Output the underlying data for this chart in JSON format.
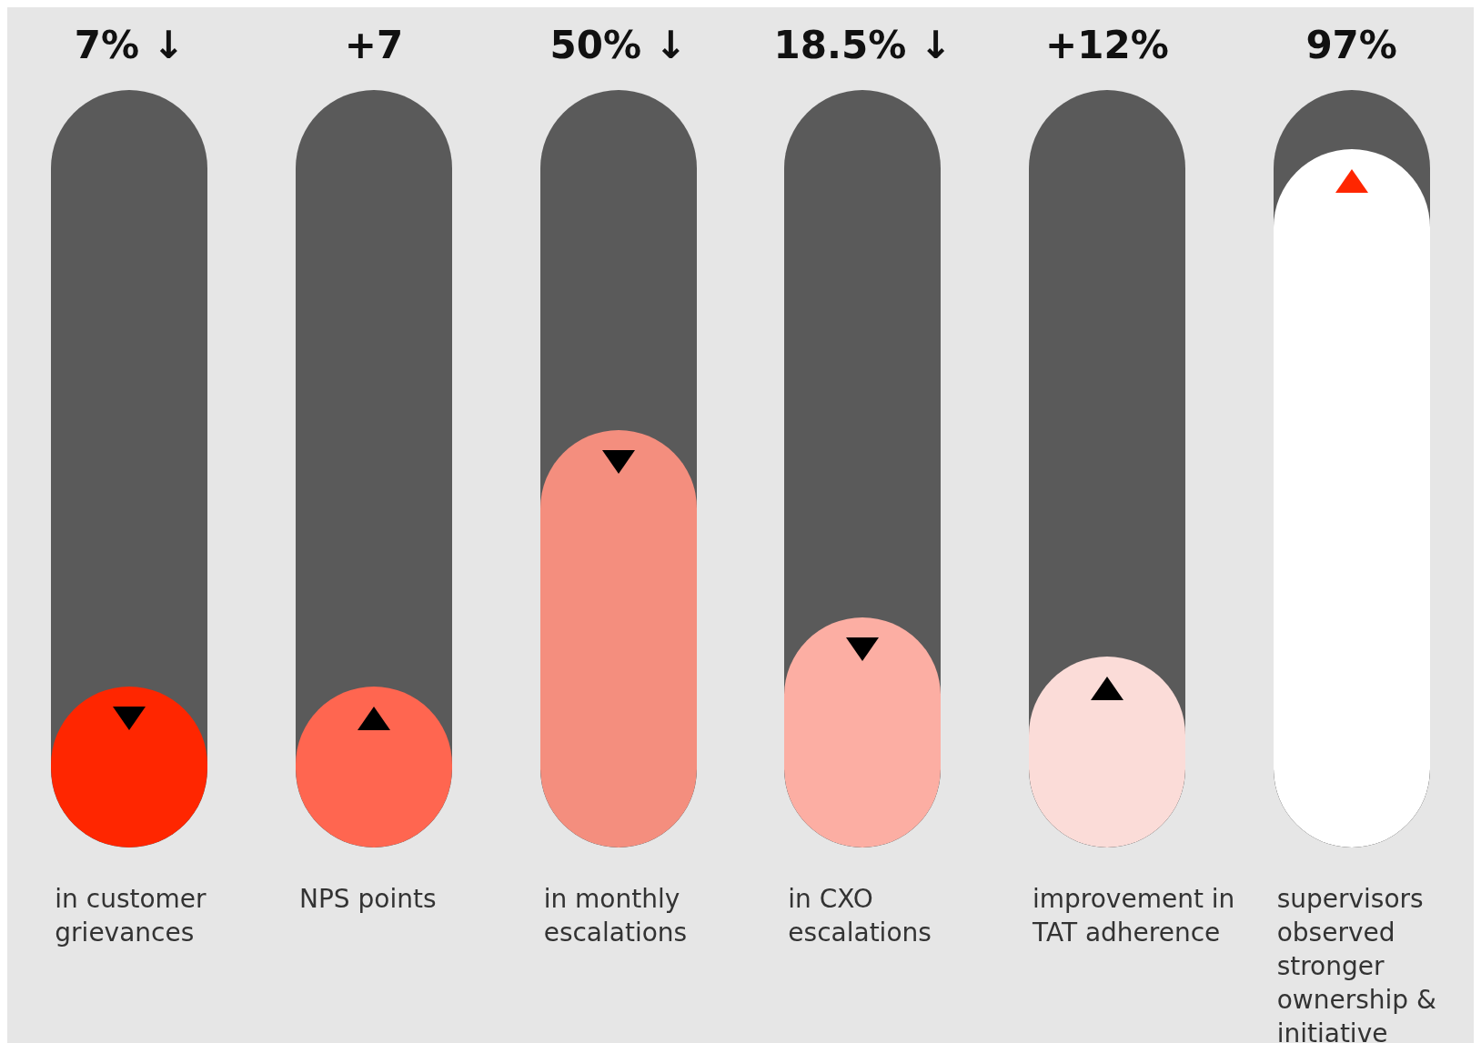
{
  "chart_data": {
    "type": "other",
    "categories": [
      "in customer grievances",
      "NPS points",
      "in monthly escalations",
      "in CXO escalations",
      "improvement in TAT adherence",
      "supervisors observed stronger ownership & initiative"
    ],
    "values": [
      7,
      7,
      50,
      18.5,
      12,
      97
    ],
    "colors": [
      "#ff2600",
      "#ff6650",
      "#f48e7e",
      "#fcaea3",
      "#fbdcd8",
      "#ffffff"
    ],
    "value_labels": [
      "7% ↓",
      "+7",
      "50% ↓",
      "18.5% ↓",
      "+12%",
      "97%"
    ]
  }
}
